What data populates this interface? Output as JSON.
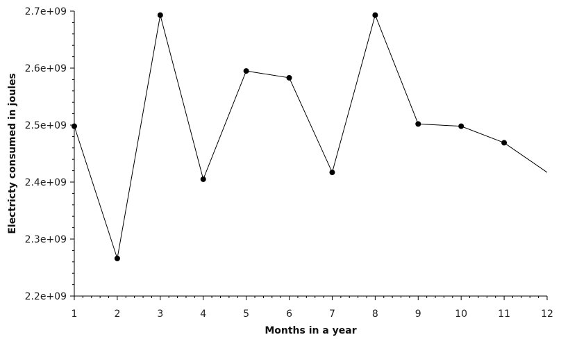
{
  "chart_data": {
    "type": "line",
    "xlabel": "Months in a year",
    "ylabel": "Electricty consumed in joules",
    "xlim": [
      1,
      12
    ],
    "ylim": [
      2200000000,
      2700000000
    ],
    "x_ticks": [
      1,
      2,
      3,
      4,
      5,
      6,
      7,
      8,
      9,
      10,
      11,
      12
    ],
    "x_tick_labels": [
      "1",
      "2",
      "3",
      "4",
      "5",
      "6",
      "7",
      "8",
      "9",
      "10",
      "11",
      "12"
    ],
    "y_ticks": [
      2200000000,
      2300000000,
      2400000000,
      2500000000,
      2600000000,
      2700000000
    ],
    "y_tick_labels": [
      "2.2e+09",
      "2.3e+09",
      "2.4e+09",
      "2.5e+09",
      "2.6e+09",
      "2.7e+09"
    ],
    "x_minor_per_major": 5,
    "y_minor_per_major": 5,
    "grid": false,
    "line_color": "#000000",
    "series": [
      {
        "x": [
          1,
          2,
          3,
          4,
          5,
          6,
          7,
          8,
          9,
          10,
          11,
          12
        ],
        "values": [
          2498000000,
          2266000000,
          2693000000,
          2405000000,
          2595000000,
          2583000000,
          2417000000,
          2693000000,
          2502000000,
          2498000000,
          2469000000,
          2417000000
        ],
        "markers": [
          true,
          true,
          true,
          true,
          true,
          true,
          true,
          true,
          true,
          true,
          true,
          false
        ]
      }
    ]
  }
}
